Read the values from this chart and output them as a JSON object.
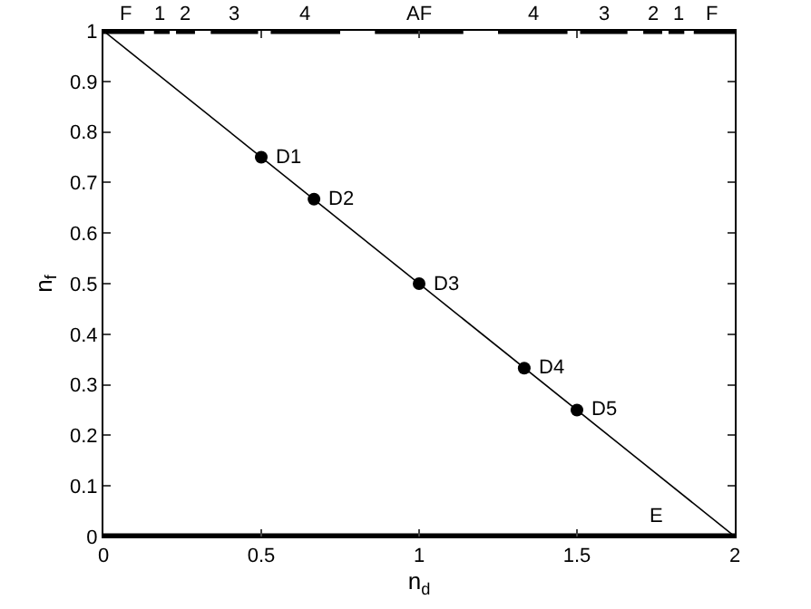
{
  "chart_data": {
    "type": "line",
    "xlabel": "n$_{d}$",
    "ylabel": "n$_{f}$",
    "xlim": [
      0,
      2
    ],
    "ylim": [
      0,
      1
    ],
    "xticks": [
      0,
      0.5,
      1,
      1.5,
      2
    ],
    "yticks": [
      0,
      0.1,
      0.2,
      0.3,
      0.4,
      0.5,
      0.6,
      0.7,
      0.8,
      0.9,
      1
    ],
    "grid": false,
    "series": [
      {
        "type": "line",
        "color": "#000000",
        "marker": "none",
        "line_style": "solid",
        "x": [
          0,
          2
        ],
        "values": [
          1,
          0
        ]
      },
      {
        "type": "scatter",
        "color": "#000000",
        "marker": "circle",
        "x": [
          0.5,
          0.667,
          1,
          1.333,
          1.5
        ],
        "values": [
          0.75,
          0.667,
          0.5,
          0.333,
          0.25
        ]
      },
      {
        "type": "step",
        "color": "#000000",
        "marker": "none",
        "x": [
          0,
          0.13
        ],
        "values": [
          1,
          1
        ]
      },
      {
        "type": "step",
        "color": "#000000",
        "marker": "none",
        "x": [
          0.16,
          0.21
        ],
        "values": [
          1,
          1
        ]
      },
      {
        "type": "step",
        "color": "#000000",
        "marker": "none",
        "x": [
          0.23,
          0.29
        ],
        "values": [
          1,
          1
        ]
      },
      {
        "type": "step",
        "color": "#000000",
        "marker": "none",
        "x": [
          0.34,
          0.49
        ],
        "values": [
          1,
          1
        ]
      },
      {
        "type": "step",
        "color": "#000000",
        "marker": "none",
        "x": [
          0.53,
          0.75
        ],
        "values": [
          1,
          1
        ]
      },
      {
        "type": "step",
        "color": "#000000",
        "marker": "none",
        "x": [
          0.86,
          1.14
        ],
        "values": [
          1,
          1
        ]
      },
      {
        "type": "step",
        "color": "#000000",
        "marker": "none",
        "x": [
          1.25,
          1.47
        ],
        "values": [
          1,
          1
        ]
      },
      {
        "type": "step",
        "color": "#000000",
        "marker": "none",
        "x": [
          1.51,
          1.66
        ],
        "values": [
          1,
          1
        ]
      },
      {
        "type": "step",
        "color": "#000000",
        "marker": "none",
        "x": [
          1.71,
          1.77
        ],
        "values": [
          1,
          1
        ]
      },
      {
        "type": "step",
        "color": "#000000",
        "marker": "none",
        "x": [
          1.79,
          1.84
        ],
        "values": [
          1,
          1
        ]
      },
      {
        "type": "step",
        "color": "#000000",
        "marker": "none",
        "x": [
          1.87,
          2
        ],
        "values": [
          1,
          1
        ]
      },
      {
        "type": "step",
        "color": "#000000",
        "marker": "none",
        "line_style": "solid",
        "x": [
          0,
          2
        ],
        "values": [
          0,
          0
        ]
      }
    ],
    "annotations": [
      {
        "text": "F",
        "x": 0.07,
        "y": 1
      },
      {
        "text": "1",
        "x": 0.18,
        "y": 1
      },
      {
        "text": "2",
        "x": 0.26,
        "y": 1
      },
      {
        "text": "3",
        "x": 0.415,
        "y": 1
      },
      {
        "text": "4",
        "x": 0.64,
        "y": 1
      },
      {
        "text": "AF",
        "x": 1,
        "y": 1
      },
      {
        "text": "4",
        "x": 1.36,
        "y": 1
      },
      {
        "text": "3",
        "x": 1.585,
        "y": 1
      },
      {
        "text": "2",
        "x": 1.74,
        "y": 1
      },
      {
        "text": "1",
        "x": 1.82,
        "y": 1
      },
      {
        "text": "F",
        "x": 1.93,
        "y": 1
      },
      {
        "text": "D1",
        "x": 0.5,
        "y": 0.75
      },
      {
        "text": "D2",
        "x": 0.667,
        "y": 0.667
      },
      {
        "text": "D3",
        "x": 1,
        "y": 0.5
      },
      {
        "text": "D4",
        "x": 1.333,
        "y": 0.333
      },
      {
        "text": "D5",
        "x": 1.5,
        "y": 0.25
      },
      {
        "text": "E",
        "x": 1.75,
        "y": 0
      }
    ]
  }
}
